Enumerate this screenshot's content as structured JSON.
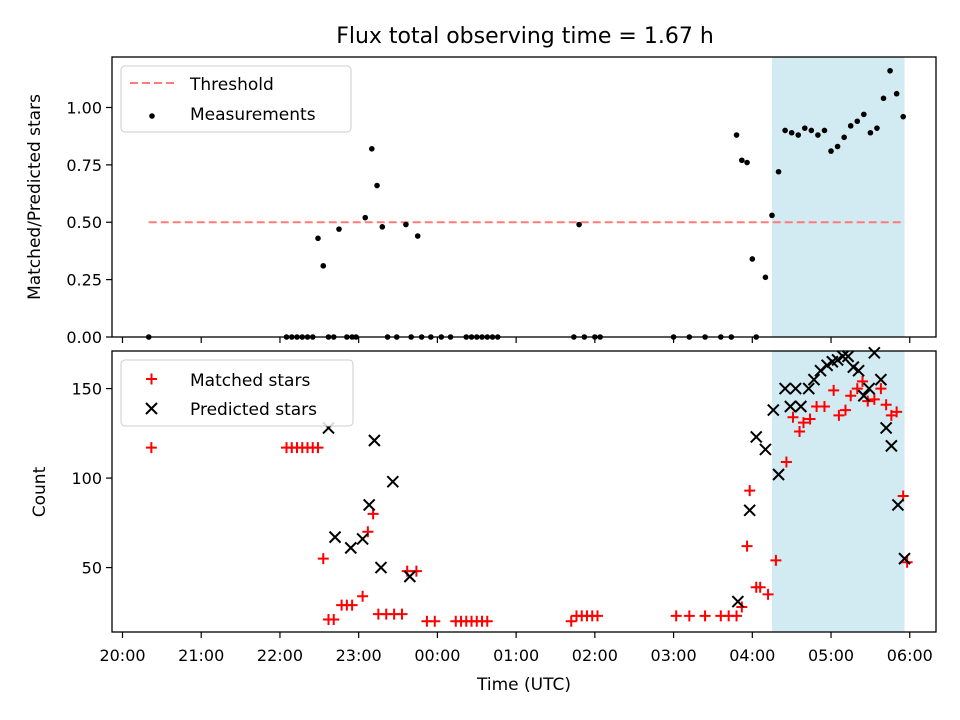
{
  "figure": {
    "title": "Flux total observing time = 1.67 h"
  },
  "chart_data": [
    {
      "type": "scatter",
      "ylabel": "Matched/Predicted stars",
      "xlim": [
        "19:52",
        "06:20"
      ],
      "ylim": [
        0,
        1.22
      ],
      "yticks": [
        "0.00",
        "0.25",
        "0.50",
        "0.75",
        "1.00"
      ],
      "ytick_values": [
        0,
        0.25,
        0.5,
        0.75,
        1.0
      ],
      "threshold": {
        "name": "Threshold",
        "y": 0.5,
        "x_from": "20:20",
        "x_to": "05:56",
        "color": "#ff7b7b"
      },
      "highlight": {
        "from": "04:15",
        "to": "05:56",
        "color": "#add8e6"
      },
      "legend": {
        "position": "top-left",
        "entries": [
          "Threshold",
          "Measurements"
        ]
      },
      "series": [
        {
          "name": "Measurements",
          "color": "#000000",
          "marker": "dot",
          "x": [
            "20:20",
            "22:05",
            "22:09",
            "22:13",
            "22:17",
            "22:21",
            "22:25",
            "22:29",
            "22:33",
            "22:37",
            "22:41",
            "22:45",
            "22:51",
            "22:55",
            "22:58",
            "23:05",
            "23:10",
            "23:14",
            "23:18",
            "23:22",
            "23:29",
            "23:36",
            "23:40",
            "23:45",
            "23:48",
            "23:55",
            "00:03",
            "00:10",
            "00:22",
            "00:26",
            "00:30",
            "00:34",
            "00:38",
            "00:42",
            "00:46",
            "01:44",
            "01:48",
            "01:52",
            "02:00",
            "02:04",
            "03:00",
            "03:12",
            "03:24",
            "03:36",
            "03:44",
            "03:48",
            "03:52",
            "03:56",
            "04:00",
            "04:03",
            "04:10",
            "04:15",
            "04:20",
            "04:25",
            "04:30",
            "04:35",
            "04:40",
            "04:45",
            "04:50",
            "04:55",
            "05:00",
            "05:05",
            "05:10",
            "05:15",
            "05:20",
            "05:25",
            "05:30",
            "05:35",
            "05:40",
            "05:45",
            "05:50",
            "05:55"
          ],
          "y": [
            0,
            0,
            0,
            0,
            0,
            0,
            0,
            0.43,
            0.31,
            0,
            0,
            0.47,
            0,
            0,
            0,
            0.52,
            0.82,
            0.66,
            0.48,
            0,
            0,
            0.49,
            0,
            0.44,
            0,
            0,
            0,
            0,
            0,
            0,
            0,
            0,
            0,
            0,
            0,
            0,
            0.49,
            0,
            0,
            0,
            0,
            0,
            0,
            0,
            0,
            0.88,
            0.77,
            0.76,
            0.34,
            0,
            0.26,
            0.53,
            0.72,
            0.9,
            0.89,
            0.88,
            0.91,
            0.9,
            0.88,
            0.9,
            0.81,
            0.83,
            0.87,
            0.92,
            0.94,
            0.97,
            0.89,
            0.91,
            1.04,
            1.16,
            1.06,
            0.96
          ]
        }
      ]
    },
    {
      "type": "scatter",
      "xlabel": "Time (UTC)",
      "ylabel": "Count",
      "xlim": [
        "19:52",
        "06:20"
      ],
      "ylim": [
        14,
        171
      ],
      "yticks": [
        "50",
        "100",
        "150"
      ],
      "ytick_values": [
        50,
        100,
        150
      ],
      "xticks": [
        "20:00",
        "21:00",
        "22:00",
        "23:00",
        "00:00",
        "01:00",
        "02:00",
        "03:00",
        "04:00",
        "05:00",
        "06:00"
      ],
      "highlight": {
        "from": "04:15",
        "to": "05:56",
        "color": "#add8e6"
      },
      "legend": {
        "position": "top-left",
        "entries": [
          "Matched stars",
          "Predicted stars"
        ]
      },
      "series": [
        {
          "name": "Matched stars",
          "color": "#ff0000",
          "marker": "plus",
          "x": [
            "20:22",
            "22:05",
            "22:09",
            "22:13",
            "22:17",
            "22:21",
            "22:25",
            "22:29",
            "22:33",
            "22:37",
            "22:41",
            "22:47",
            "22:51",
            "22:55",
            "23:03",
            "23:07",
            "23:11",
            "23:15",
            "23:21",
            "23:27",
            "23:33",
            "23:37",
            "23:44",
            "23:52",
            "23:58",
            "00:14",
            "00:18",
            "00:22",
            "00:26",
            "00:30",
            "00:34",
            "00:38",
            "01:42",
            "01:46",
            "01:50",
            "01:54",
            "01:58",
            "02:02",
            "03:02",
            "03:12",
            "03:24",
            "03:36",
            "03:42",
            "03:48",
            "03:52",
            "03:56",
            "03:58",
            "04:03",
            "04:06",
            "04:12",
            "04:18",
            "04:26",
            "04:31",
            "04:36",
            "04:39",
            "04:44",
            "04:49",
            "04:55",
            "05:02",
            "05:06",
            "05:11",
            "05:15",
            "05:20",
            "05:24",
            "05:28",
            "05:33",
            "05:38",
            "05:42",
            "05:46",
            "05:50",
            "05:55",
            "05:58"
          ],
          "y": [
            117,
            117,
            117,
            117,
            117,
            117,
            117,
            117,
            55,
            21,
            21,
            29,
            29,
            29,
            34,
            70,
            80,
            24,
            24,
            24,
            24,
            48,
            48,
            20,
            20,
            20,
            20,
            20,
            20,
            20,
            20,
            20,
            20,
            23,
            23,
            23,
            23,
            23,
            23,
            23,
            23,
            23,
            23,
            23,
            28,
            62,
            93,
            39,
            39,
            35,
            54,
            109,
            134,
            126,
            131,
            133,
            140,
            140,
            149,
            135,
            138,
            146,
            150,
            154,
            143,
            144,
            150,
            141,
            135,
            137,
            90,
            53
          ]
        },
        {
          "name": "Predicted stars",
          "color": "#000000",
          "marker": "x",
          "x": [
            "22:37",
            "22:42",
            "22:54",
            "23:03",
            "23:08",
            "23:12",
            "23:17",
            "23:26",
            "23:39",
            "03:49",
            "03:58",
            "04:03",
            "04:10",
            "04:16",
            "04:20",
            "04:25",
            "04:29",
            "04:33",
            "04:37",
            "04:43",
            "04:47",
            "04:52",
            "04:57",
            "05:01",
            "05:05",
            "05:09",
            "05:13",
            "05:17",
            "05:21",
            "05:25",
            "05:29",
            "05:33",
            "05:38",
            "05:42",
            "05:46",
            "05:51",
            "05:56"
          ],
          "y": [
            128,
            67,
            61,
            66,
            85,
            121,
            50,
            98,
            45,
            31,
            82,
            123,
            116,
            138,
            102,
            150,
            140,
            150,
            140,
            150,
            155,
            160,
            163,
            165,
            166,
            168,
            168,
            162,
            160,
            146,
            150,
            170,
            155,
            128,
            118,
            85,
            55
          ]
        }
      ]
    }
  ]
}
